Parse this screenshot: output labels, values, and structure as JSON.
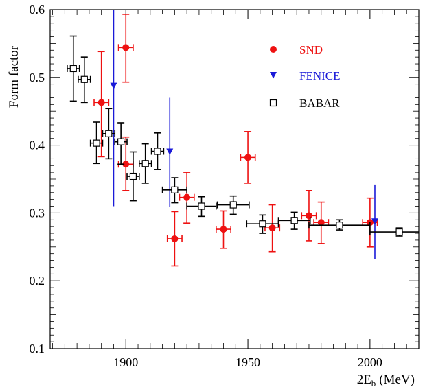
{
  "chart_data": {
    "type": "scatter",
    "title": "",
    "xlabel": "2E",
    "xlabel_sub": "b",
    "xlabel_unit": "(MeV)",
    "ylabel": "Form factor",
    "xlim": [
      1869,
      2020
    ],
    "ylim": [
      0.1,
      0.6
    ],
    "x_ticks": [
      1900,
      1950,
      2000
    ],
    "y_ticks": [
      0.1,
      0.2,
      0.3,
      0.4,
      0.5,
      0.6
    ],
    "y_tick_labels": [
      "0.1",
      "0.2",
      "0.3",
      "0.4",
      "0.5",
      "0.6"
    ],
    "legend_position": "top-right",
    "series": [
      {
        "name": "SND",
        "marker": "filled-circle",
        "color": "#ee1111",
        "points": [
          {
            "x": 1890,
            "xerr": 3,
            "y": 0.463,
            "ylo": 0.383,
            "yhi": 0.538
          },
          {
            "x": 1900,
            "xerr": 3,
            "y": 0.544,
            "ylo": 0.493,
            "yhi": 0.593
          },
          {
            "x": 1900,
            "xerr": 3,
            "y": 0.372,
            "ylo": 0.333,
            "yhi": 0.412
          },
          {
            "x": 1920,
            "xerr": 3,
            "y": 0.262,
            "ylo": 0.222,
            "yhi": 0.302
          },
          {
            "x": 1925,
            "xerr": 3,
            "y": 0.323,
            "ylo": 0.285,
            "yhi": 0.36
          },
          {
            "x": 1940,
            "xerr": 3,
            "y": 0.276,
            "ylo": 0.248,
            "yhi": 0.303
          },
          {
            "x": 1950,
            "xerr": 3,
            "y": 0.382,
            "ylo": 0.344,
            "yhi": 0.42
          },
          {
            "x": 1960,
            "xerr": 3,
            "y": 0.278,
            "ylo": 0.243,
            "yhi": 0.312
          },
          {
            "x": 1975,
            "xerr": 3,
            "y": 0.296,
            "ylo": 0.259,
            "yhi": 0.333
          },
          {
            "x": 1980,
            "xerr": 3,
            "y": 0.286,
            "ylo": 0.255,
            "yhi": 0.316
          },
          {
            "x": 2000,
            "xerr": 3,
            "y": 0.286,
            "ylo": 0.25,
            "yhi": 0.322
          }
        ]
      },
      {
        "name": "FENICE",
        "marker": "filled-triangle-down",
        "color": "#1a1ad8",
        "points": [
          {
            "x": 1895,
            "xerr": 0,
            "y": 0.487,
            "ylo": 0.31,
            "yhi": 0.6
          },
          {
            "x": 1918,
            "xerr": 0,
            "y": 0.39,
            "ylo": 0.309,
            "yhi": 0.47
          },
          {
            "x": 2002,
            "xerr": 0,
            "y": 0.287,
            "ylo": 0.232,
            "yhi": 0.342
          }
        ]
      },
      {
        "name": "BABAR",
        "marker": "open-square",
        "color": "#000000",
        "points": [
          {
            "x": 1878.5,
            "xerr": 2.5,
            "y": 0.513,
            "ylo": 0.465,
            "yhi": 0.561
          },
          {
            "x": 1883,
            "xerr": 2.5,
            "y": 0.497,
            "ylo": 0.463,
            "yhi": 0.53
          },
          {
            "x": 1888,
            "xerr": 2.5,
            "y": 0.403,
            "ylo": 0.373,
            "yhi": 0.434
          },
          {
            "x": 1893,
            "xerr": 2.5,
            "y": 0.417,
            "ylo": 0.38,
            "yhi": 0.454
          },
          {
            "x": 1898,
            "xerr": 2.5,
            "y": 0.405,
            "ylo": 0.372,
            "yhi": 0.433
          },
          {
            "x": 1903,
            "xerr": 2.5,
            "y": 0.354,
            "ylo": 0.318,
            "yhi": 0.39
          },
          {
            "x": 1908,
            "xerr": 2.5,
            "y": 0.373,
            "ylo": 0.344,
            "yhi": 0.402
          },
          {
            "x": 1913,
            "xerr": 2.5,
            "y": 0.391,
            "ylo": 0.364,
            "yhi": 0.418
          },
          {
            "x": 1920,
            "xerr": 5,
            "y": 0.334,
            "ylo": 0.315,
            "yhi": 0.352
          },
          {
            "x": 1931,
            "xerr": 6,
            "y": 0.31,
            "ylo": 0.295,
            "yhi": 0.324
          },
          {
            "x": 1944,
            "xerr": 6.5,
            "y": 0.312,
            "ylo": 0.298,
            "yhi": 0.325
          },
          {
            "x": 1956,
            "xerr": 6.5,
            "y": 0.284,
            "ylo": 0.27,
            "yhi": 0.297
          },
          {
            "x": 1969,
            "xerr": 6.5,
            "y": 0.289,
            "ylo": 0.276,
            "yhi": 0.301
          },
          {
            "x": 1987.5,
            "xerr": 12.5,
            "y": 0.282,
            "ylo": 0.275,
            "yhi": 0.29
          },
          {
            "x": 2012,
            "xerr": 12,
            "y": 0.272,
            "ylo": 0.266,
            "yhi": 0.278
          }
        ]
      }
    ]
  }
}
